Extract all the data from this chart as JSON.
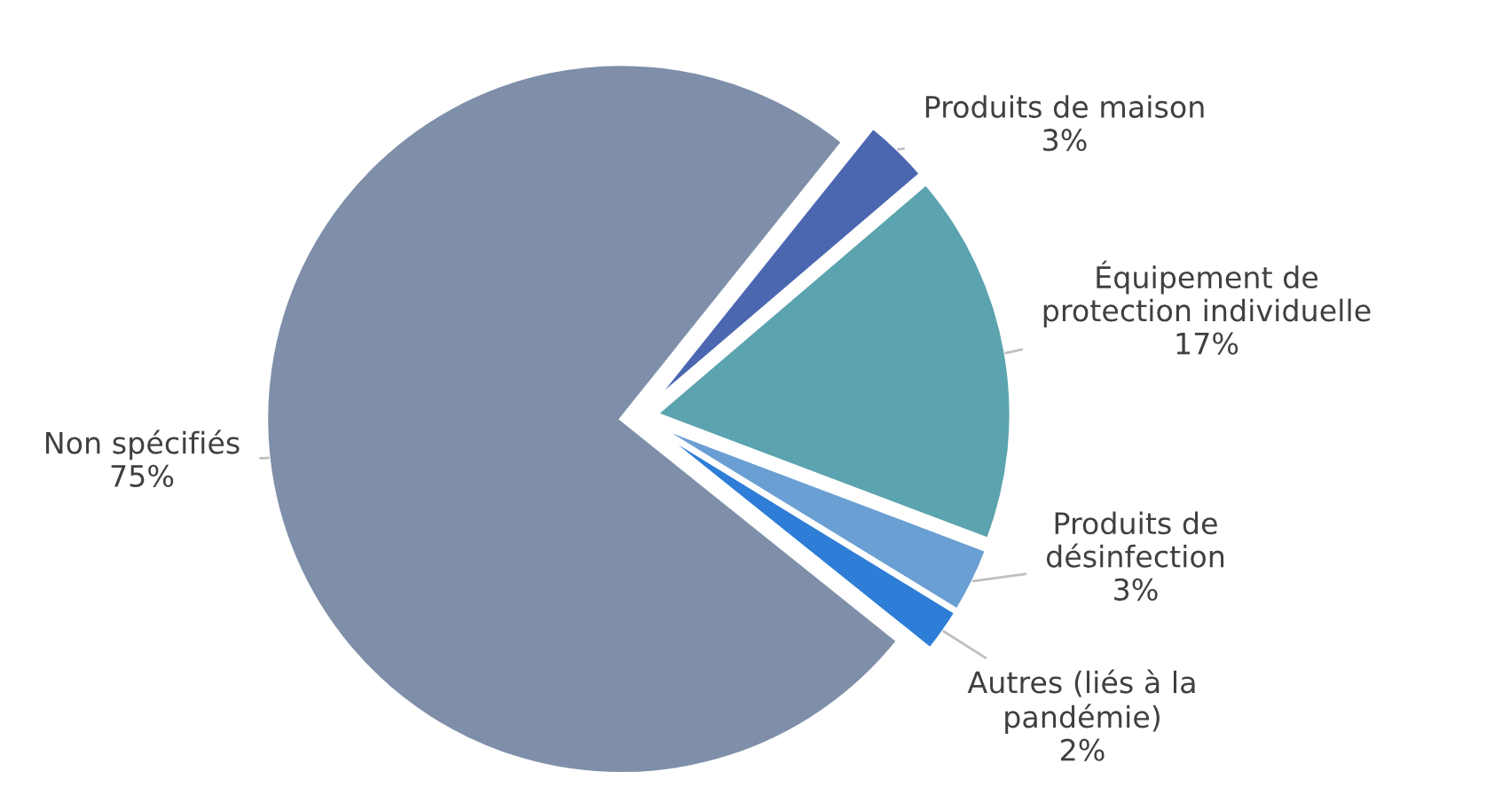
{
  "chart_data": {
    "type": "pie",
    "categories": [
      "Produits de maison",
      "Équipement de\nprotection individuelle",
      "Produits de\ndésinfection",
      "Autres (liés à la\npandémie)",
      "Non spécifiés"
    ],
    "values": [
      3,
      17,
      3,
      2,
      75
    ],
    "colors": [
      "#4a67b0",
      "#5ba3ae",
      "#6a9fd4",
      "#2e7dd6",
      "#7f8fa9"
    ],
    "value_labels": [
      "3%",
      "17%",
      "3%",
      "2%",
      "75%"
    ],
    "legend": false
  }
}
